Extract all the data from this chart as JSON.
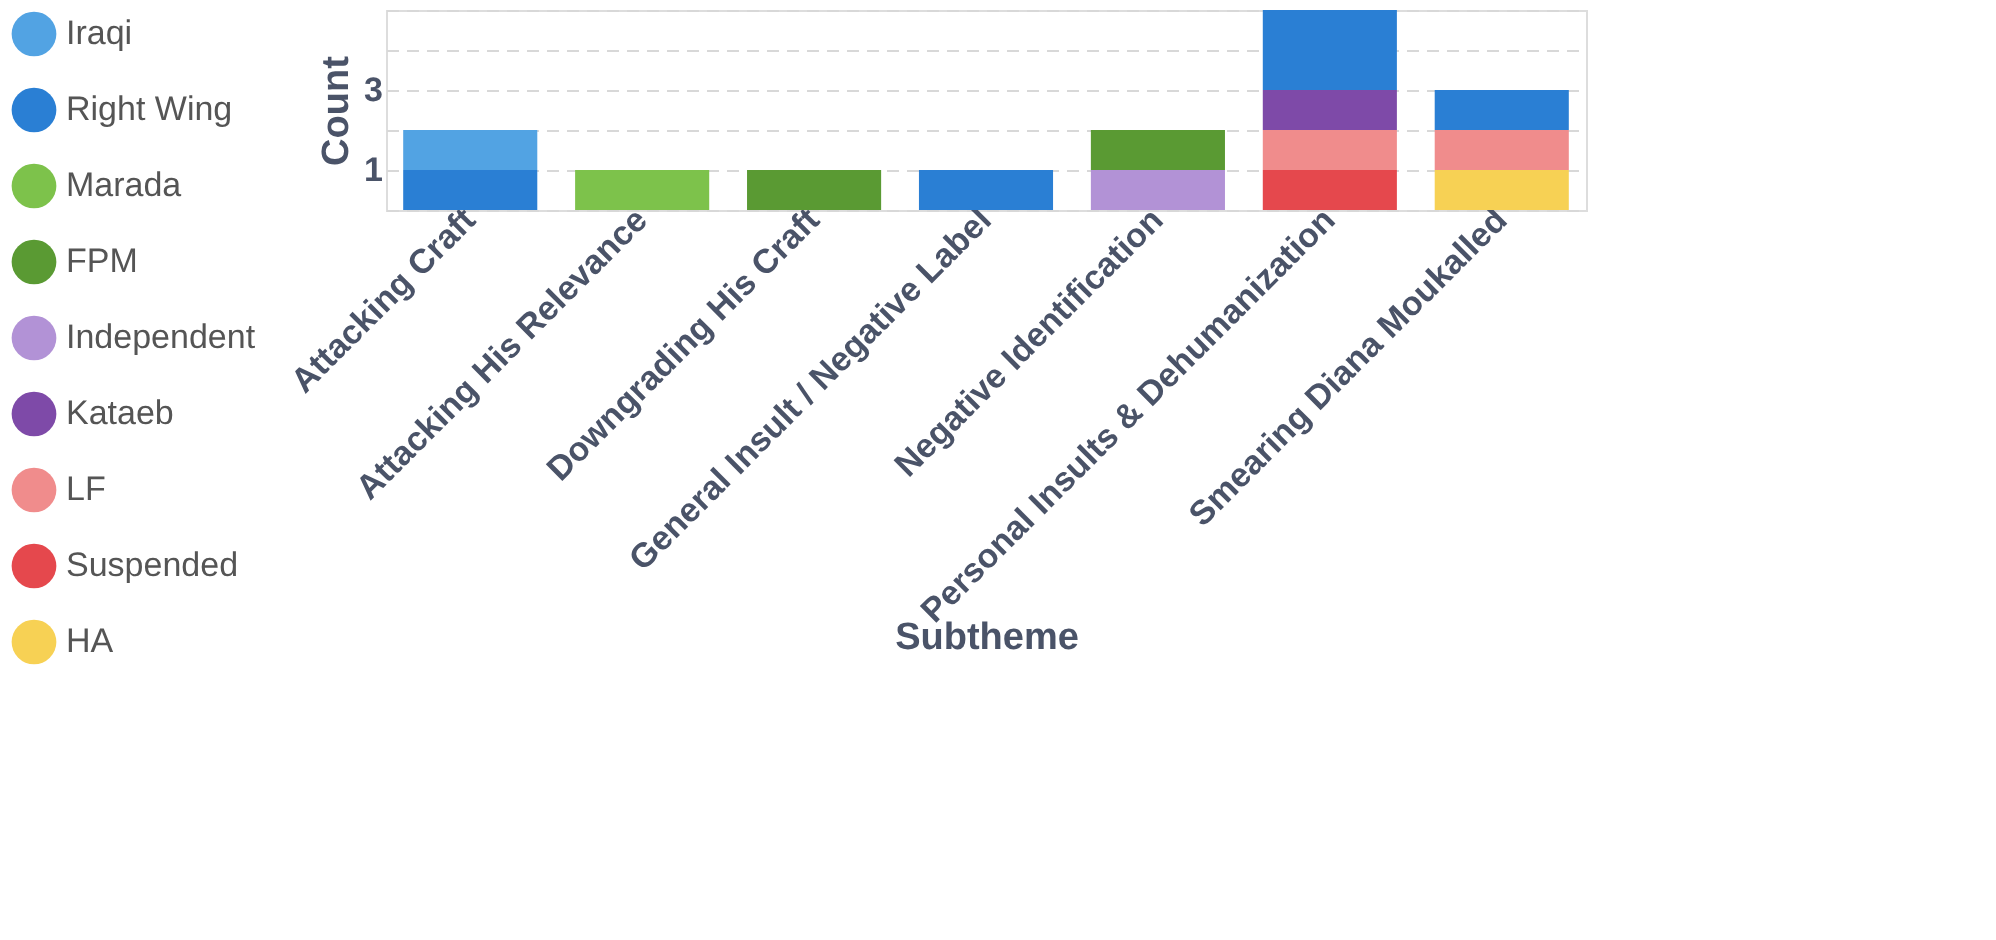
{
  "chart_data": {
    "type": "bar",
    "stacked": true,
    "xlabel": "Subtheme",
    "ylabel": "Count",
    "categories": [
      "Attacking Craft",
      "Attacking His Relevance",
      "Downgrading His Craft",
      "General Insult / Negative Label",
      "Negative Identification",
      "Personal Insults & Dehumanization",
      "Smearing Diana Moukalled"
    ],
    "series": [
      {
        "name": "HA",
        "color": "#f7d154",
        "values": [
          null,
          null,
          null,
          null,
          null,
          null,
          1
        ]
      },
      {
        "name": "Suspended",
        "color": "#e5484d",
        "values": [
          null,
          null,
          null,
          null,
          null,
          1,
          null
        ]
      },
      {
        "name": "LF",
        "color": "#f08c8c",
        "values": [
          null,
          null,
          null,
          null,
          null,
          1,
          1
        ]
      },
      {
        "name": "Kataeb",
        "color": "#7e4aa8",
        "values": [
          null,
          null,
          null,
          null,
          null,
          1,
          null
        ]
      },
      {
        "name": "Independent",
        "color": "#b292d6",
        "values": [
          null,
          null,
          null,
          null,
          1,
          null,
          null
        ]
      },
      {
        "name": "FPM",
        "color": "#5a9a33",
        "values": [
          null,
          null,
          1,
          null,
          1,
          null,
          null
        ]
      },
      {
        "name": "Marada",
        "color": "#7dc24b",
        "values": [
          null,
          1,
          null,
          null,
          null,
          null,
          null
        ]
      },
      {
        "name": "Right Wing",
        "color": "#2a7fd4",
        "values": [
          1,
          null,
          null,
          1,
          null,
          2,
          1
        ]
      },
      {
        "name": "Iraqi",
        "color": "#52a3e3",
        "values": [
          1,
          null,
          null,
          null,
          null,
          null,
          null
        ]
      }
    ],
    "ylim": [
      0,
      5
    ],
    "yticks": [
      {
        "value": 0,
        "label": null
      },
      1,
      {
        "value": 2,
        "label": null
      },
      3,
      {
        "value": 4,
        "label": null
      },
      {
        "value": 5,
        "label": null
      }
    ],
    "grid": "y",
    "legend": "left"
  }
}
